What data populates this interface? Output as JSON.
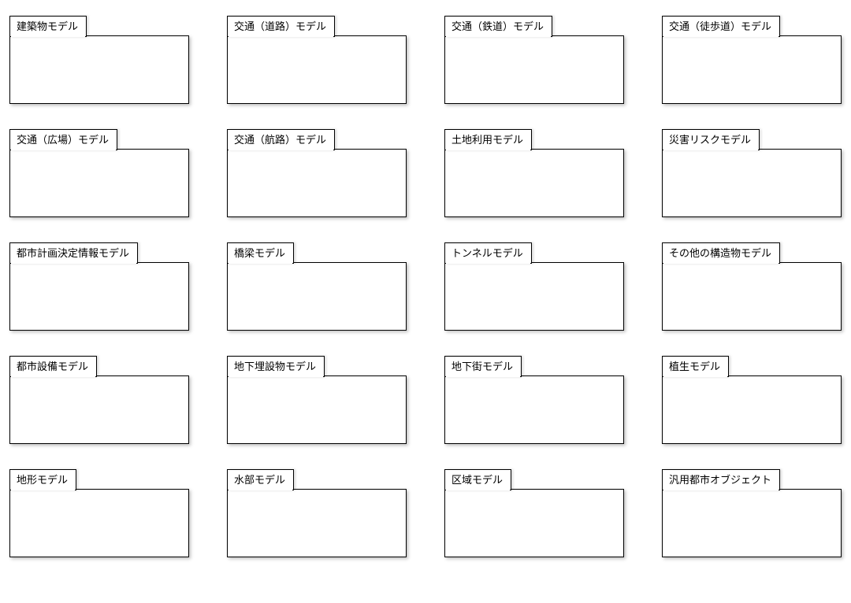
{
  "diagram": {
    "type": "uml-package-grid",
    "grid": {
      "rows": 5,
      "cols": 4
    },
    "border_color": "#000000",
    "background_color": "#ffffff",
    "shadow_color": "rgba(0,0,0,0.25)",
    "tab_fontsize": 13,
    "packages": [
      {
        "label": "建築物モデル"
      },
      {
        "label": "交通（道路）モデル"
      },
      {
        "label": "交通（鉄道）モデル"
      },
      {
        "label": "交通（徒歩道）モデル"
      },
      {
        "label": "交通（広場）モデル"
      },
      {
        "label": "交通（航路）モデル"
      },
      {
        "label": "土地利用モデル"
      },
      {
        "label": "災害リスクモデル"
      },
      {
        "label": "都市計画決定情報モデル"
      },
      {
        "label": "橋梁モデル"
      },
      {
        "label": "トンネルモデル"
      },
      {
        "label": "その他の構造物モデル"
      },
      {
        "label": "都市設備モデル"
      },
      {
        "label": "地下埋設物モデル"
      },
      {
        "label": "地下街モデル"
      },
      {
        "label": "植生モデル"
      },
      {
        "label": "地形モデル"
      },
      {
        "label": "水部モデル"
      },
      {
        "label": "区域モデル"
      },
      {
        "label": "汎用都市オブジェクト"
      }
    ]
  }
}
